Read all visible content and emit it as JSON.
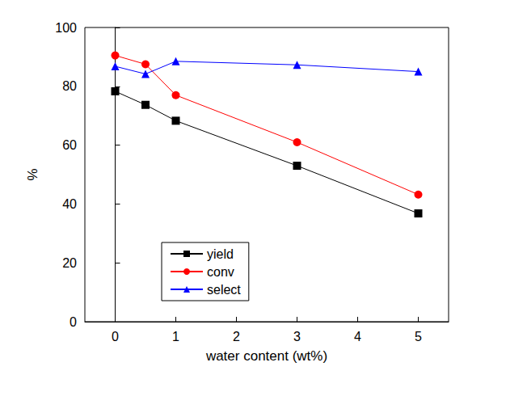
{
  "chart_data": {
    "type": "line",
    "x_label": "water content (wt%)",
    "y_label": "%",
    "x": [
      0,
      0.5,
      1,
      3,
      5
    ],
    "series": [
      {
        "name": "yield",
        "color": "#000000",
        "marker": "square",
        "line_style": "solid",
        "values": [
          78.3,
          73.7,
          68.3,
          53.0,
          36.8
        ]
      },
      {
        "name": "conv",
        "color": "#ff0000",
        "marker": "circle",
        "line_style": "solid",
        "values": [
          90.5,
          87.5,
          77.0,
          61.0,
          43.2
        ]
      },
      {
        "name": "select",
        "color": "#0000ff",
        "marker": "triangle",
        "line_style": "solid",
        "values": [
          86.8,
          84.2,
          88.5,
          87.3,
          85.0
        ]
      }
    ],
    "xlim": [
      -0.5,
      5.5
    ],
    "xticks": [
      0,
      1,
      2,
      3,
      4,
      5
    ],
    "ylim": [
      0,
      100
    ],
    "yticks": [
      0,
      20,
      40,
      60,
      80,
      100
    ],
    "grid": false,
    "legend": "lower left"
  }
}
